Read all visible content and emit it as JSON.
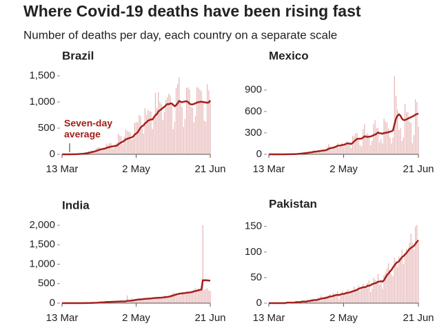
{
  "title": "Where Covid-19 deaths have been rising fast",
  "subtitle": "Number of deaths per day, each country on a separate scale",
  "chart_data": [
    {
      "type": "bar",
      "title": "Brazil",
      "annotation": [
        "Seven-day",
        "average"
      ],
      "color": "#e6b3b3",
      "line_color": "#a3201b",
      "categories": [
        "13 Mar",
        null,
        null,
        null,
        null,
        null,
        null,
        null,
        null,
        null,
        null,
        null,
        null,
        null,
        null,
        null,
        null,
        null,
        null,
        null,
        null,
        null,
        null,
        null,
        null,
        null,
        null,
        null,
        null,
        null,
        null,
        null,
        null,
        null,
        null,
        null,
        null,
        null,
        null,
        null,
        null,
        null,
        null,
        null,
        null,
        null,
        null,
        null,
        null,
        null,
        "2 May",
        null,
        null,
        null,
        null,
        null,
        null,
        null,
        null,
        null,
        null,
        null,
        null,
        null,
        null,
        null,
        null,
        null,
        null,
        null,
        null,
        null,
        null,
        null,
        null,
        null,
        null,
        null,
        null,
        null,
        null,
        null,
        null,
        null,
        null,
        null,
        null,
        null,
        null,
        null,
        null,
        null,
        null,
        null,
        null,
        null,
        null,
        null,
        null,
        null,
        "21 Jun"
      ],
      "values": [
        0,
        0,
        0,
        0,
        0,
        0,
        1,
        3,
        2,
        7,
        11,
        9,
        12,
        18,
        22,
        23,
        42,
        40,
        58,
        60,
        73,
        54,
        67,
        114,
        133,
        141,
        115,
        68,
        99,
        105,
        204,
        188,
        217,
        213,
        115,
        113,
        166,
        225,
        396,
        358,
        346,
        189,
        338,
        474,
        449,
        435,
        421,
        275,
        296,
        600,
        615,
        610,
        751,
        730,
        496,
        396,
        881,
        749,
        844,
        824,
        816,
        485,
        674,
        1179,
        888,
        1188,
        1001,
        965,
        653,
        807,
        1039,
        1086,
        1156,
        1124,
        956,
        480,
        623,
        1262,
        1349,
        1473,
        1005,
        904,
        525,
        679,
        1272,
        1274,
        1239,
        909,
        892,
        612,
        732,
        1282,
        1269,
        1238,
        1206,
        1022,
        641,
        627,
        1338,
        1221,
        1022
      ],
      "average": [
        0,
        0,
        0,
        0,
        0,
        0,
        0,
        1,
        1,
        2,
        3,
        5,
        6,
        9,
        11,
        13,
        18,
        22,
        28,
        34,
        43,
        48,
        55,
        63,
        74,
        85,
        93,
        99,
        105,
        110,
        123,
        131,
        138,
        147,
        152,
        154,
        163,
        166,
        191,
        211,
        229,
        240,
        261,
        285,
        295,
        307,
        317,
        323,
        338,
        376,
        396,
        420,
        465,
        509,
        538,
        552,
        592,
        611,
        644,
        654,
        667,
        665,
        705,
        748,
        769,
        818,
        841,
        862,
        886,
        905,
        935,
        960,
        955,
        972,
        971,
        946,
        919,
        938,
        975,
        1020,
        1003,
        996,
        1003,
        1011,
        1012,
        1001,
        968,
        954,
        952,
        964,
        972,
        990,
        995,
        1000,
        1005,
        1000,
        995,
        990,
        985,
        990,
        1030
      ],
      "ylim": [
        0,
        1500
      ],
      "yticks": [
        0,
        500,
        {
          "value": 1000,
          "label": "1,000"
        },
        {
          "value": 1500,
          "label": "1,500"
        }
      ]
    },
    {
      "type": "bar",
      "title": "Mexico",
      "color": "#e6b3b3",
      "line_color": "#a3201b",
      "categories": [
        "13 Mar",
        null,
        null,
        null,
        null,
        null,
        null,
        null,
        null,
        null,
        null,
        null,
        null,
        null,
        null,
        null,
        null,
        null,
        null,
        null,
        null,
        null,
        null,
        null,
        null,
        null,
        null,
        null,
        null,
        null,
        null,
        null,
        null,
        null,
        null,
        null,
        null,
        null,
        null,
        null,
        null,
        null,
        null,
        null,
        null,
        null,
        null,
        null,
        null,
        null,
        "2 May",
        null,
        null,
        null,
        null,
        null,
        null,
        null,
        null,
        null,
        null,
        null,
        null,
        null,
        null,
        null,
        null,
        null,
        null,
        null,
        null,
        null,
        null,
        null,
        null,
        null,
        null,
        null,
        null,
        null,
        null,
        null,
        null,
        null,
        null,
        null,
        null,
        null,
        null,
        null,
        null,
        null,
        null,
        null,
        null,
        null,
        null,
        null,
        null,
        null,
        "21 Jun"
      ],
      "values": [
        0,
        0,
        0,
        0,
        0,
        0,
        0,
        0,
        0,
        0,
        1,
        1,
        2,
        1,
        2,
        3,
        4,
        8,
        8,
        9,
        12,
        16,
        20,
        19,
        28,
        26,
        21,
        38,
        37,
        40,
        60,
        47,
        43,
        46,
        54,
        53,
        63,
        70,
        56,
        99,
        145,
        113,
        57,
        105,
        105,
        114,
        156,
        94,
        117,
        163,
        104,
        160,
        186,
        175,
        140,
        92,
        257,
        257,
        294,
        296,
        199,
        131,
        108,
        351,
        424,
        278,
        297,
        249,
        129,
        190,
        420,
        479,
        370,
        371,
        165,
        215,
        151,
        501,
        463,
        447,
        364,
        237,
        151,
        237,
        1092,
        816,
        625,
        341,
        364,
        188,
        237,
        708,
        596,
        587,
        458,
        439,
        154,
        269,
        770,
        730,
        387
      ],
      "average": [
        0,
        0,
        0,
        0,
        0,
        0,
        0,
        0,
        0,
        0,
        0,
        0,
        1,
        1,
        1,
        2,
        2,
        3,
        4,
        5,
        7,
        9,
        11,
        13,
        16,
        18,
        20,
        24,
        27,
        30,
        35,
        37,
        40,
        42,
        46,
        49,
        52,
        55,
        57,
        64,
        78,
        86,
        87,
        95,
        100,
        108,
        121,
        122,
        124,
        132,
        132,
        140,
        150,
        153,
        150,
        145,
        159,
        180,
        199,
        216,
        219,
        218,
        221,
        234,
        252,
        249,
        242,
        249,
        249,
        258,
        268,
        276,
        289,
        306,
        296,
        294,
        288,
        300,
        298,
        309,
        308,
        318,
        323,
        335,
        420,
        500,
        540,
        560,
        540,
        500,
        480,
        480,
        490,
        500,
        510,
        520,
        530,
        540,
        555,
        565,
        570
      ],
      "ylim": [
        0,
        1100
      ],
      "yticks": [
        0,
        300,
        600,
        900
      ]
    },
    {
      "type": "bar",
      "title": "India",
      "color": "#e6b3b3",
      "line_color": "#a3201b",
      "categories": [
        "13 Mar",
        null,
        null,
        null,
        null,
        null,
        null,
        null,
        null,
        null,
        null,
        null,
        null,
        null,
        null,
        null,
        null,
        null,
        null,
        null,
        null,
        null,
        null,
        null,
        null,
        null,
        null,
        null,
        null,
        null,
        null,
        null,
        null,
        null,
        null,
        null,
        null,
        null,
        null,
        null,
        null,
        null,
        null,
        null,
        null,
        null,
        null,
        null,
        null,
        null,
        "2 May",
        null,
        null,
        null,
        null,
        null,
        null,
        null,
        null,
        null,
        null,
        null,
        null,
        null,
        null,
        null,
        null,
        null,
        null,
        null,
        null,
        null,
        null,
        null,
        null,
        null,
        null,
        null,
        null,
        null,
        null,
        null,
        null,
        null,
        null,
        null,
        null,
        null,
        null,
        null,
        null,
        null,
        null,
        null,
        null,
        null,
        null,
        null,
        null,
        null,
        "21 Jun"
      ],
      "values": [
        0,
        0,
        0,
        0,
        1,
        0,
        0,
        0,
        0,
        2,
        1,
        0,
        1,
        3,
        4,
        2,
        3,
        5,
        6,
        8,
        12,
        14,
        16,
        20,
        22,
        24,
        28,
        32,
        30,
        35,
        36,
        28,
        40,
        27,
        38,
        45,
        52,
        42,
        38,
        50,
        60,
        30,
        40,
        60,
        200,
        55,
        75,
        130,
        80,
        90,
        90,
        100,
        125,
        110,
        95,
        130,
        120,
        100,
        130,
        135,
        130,
        140,
        150,
        130,
        160,
        150,
        140,
        135,
        170,
        190,
        180,
        150,
        175,
        200,
        230,
        270,
        250,
        260,
        180,
        270,
        190,
        290,
        230,
        280,
        300,
        260,
        280,
        270,
        300,
        350,
        390,
        350,
        380,
        320,
        340,
        2000,
        340,
        370,
        380,
        330,
        310
      ],
      "average": [
        0,
        0,
        0,
        0,
        0,
        0,
        0,
        0,
        0,
        0,
        0,
        1,
        1,
        1,
        1,
        2,
        2,
        3,
        3,
        4,
        5,
        7,
        8,
        10,
        12,
        15,
        17,
        20,
        22,
        25,
        28,
        30,
        32,
        33,
        35,
        36,
        38,
        39,
        40,
        42,
        44,
        44,
        45,
        46,
        60,
        60,
        62,
        65,
        70,
        80,
        85,
        90,
        95,
        95,
        100,
        105,
        110,
        112,
        115,
        118,
        120,
        125,
        130,
        132,
        135,
        138,
        140,
        142,
        145,
        150,
        155,
        160,
        165,
        175,
        185,
        195,
        210,
        220,
        230,
        240,
        245,
        250,
        255,
        260,
        265,
        270,
        275,
        280,
        290,
        300,
        310,
        320,
        330,
        340,
        345,
        590,
        585,
        590,
        585,
        580,
        580
      ],
      "ylim": [
        0,
        2000
      ],
      "yticks": [
        0,
        500,
        {
          "value": 1000,
          "label": "1,000"
        },
        {
          "value": 1500,
          "label": "1,500"
        },
        {
          "value": 2000,
          "label": "2,000"
        }
      ]
    },
    {
      "type": "bar",
      "title": "Pakistan",
      "color": "#e6b3b3",
      "line_color": "#a3201b",
      "categories": [
        "13 Mar",
        null,
        null,
        null,
        null,
        null,
        null,
        null,
        null,
        null,
        null,
        null,
        null,
        null,
        null,
        null,
        null,
        null,
        null,
        null,
        null,
        null,
        null,
        null,
        null,
        null,
        null,
        null,
        null,
        null,
        null,
        null,
        null,
        null,
        null,
        null,
        null,
        null,
        null,
        null,
        null,
        null,
        null,
        null,
        null,
        null,
        null,
        null,
        null,
        null,
        "2 May",
        null,
        null,
        null,
        null,
        null,
        null,
        null,
        null,
        null,
        null,
        null,
        null,
        null,
        null,
        null,
        null,
        null,
        null,
        null,
        null,
        null,
        null,
        null,
        null,
        null,
        null,
        null,
        null,
        null,
        null,
        null,
        null,
        null,
        null,
        null,
        null,
        null,
        null,
        null,
        null,
        null,
        null,
        null,
        null,
        null,
        null,
        null,
        null,
        null,
        "21 Jun"
      ],
      "values": [
        0,
        0,
        0,
        0,
        0,
        0,
        0,
        0,
        1,
        1,
        0,
        1,
        1,
        2,
        1,
        1,
        2,
        1,
        3,
        4,
        2,
        3,
        4,
        3,
        5,
        4,
        7,
        5,
        6,
        9,
        7,
        8,
        5,
        11,
        8,
        15,
        6,
        10,
        14,
        12,
        15,
        18,
        9,
        20,
        14,
        18,
        23,
        7,
        16,
        24,
        20,
        18,
        24,
        27,
        17,
        24,
        22,
        33,
        25,
        29,
        35,
        24,
        30,
        38,
        30,
        34,
        39,
        44,
        22,
        28,
        50,
        46,
        42,
        57,
        36,
        40,
        28,
        55,
        60,
        68,
        78,
        65,
        57,
        53,
        89,
        82,
        71,
        91,
        88,
        105,
        76,
        96,
        106,
        101,
        118,
        136,
        118,
        105,
        150,
        153,
        119
      ],
      "average": [
        0,
        0,
        0,
        0,
        0,
        0,
        0,
        0,
        0,
        0,
        0,
        0,
        1,
        1,
        1,
        1,
        1,
        1,
        2,
        2,
        2,
        2,
        3,
        3,
        3,
        3,
        4,
        4,
        5,
        5,
        6,
        6,
        6,
        7,
        8,
        9,
        9,
        10,
        10,
        11,
        12,
        13,
        13,
        14,
        15,
        16,
        16,
        16,
        17,
        18,
        18,
        19,
        20,
        20,
        21,
        22,
        23,
        24,
        25,
        26,
        28,
        29,
        30,
        31,
        31,
        32,
        34,
        34,
        35,
        37,
        38,
        39,
        40,
        42,
        42,
        43,
        42,
        45,
        50,
        55,
        58,
        62,
        65,
        70,
        74,
        78,
        80,
        82,
        86,
        90,
        92,
        95,
        98,
        102,
        106,
        108,
        110,
        112,
        116,
        120,
        123
      ],
      "ylim": [
        0,
        155
      ],
      "yticks": [
        0,
        50,
        100,
        150
      ]
    }
  ]
}
